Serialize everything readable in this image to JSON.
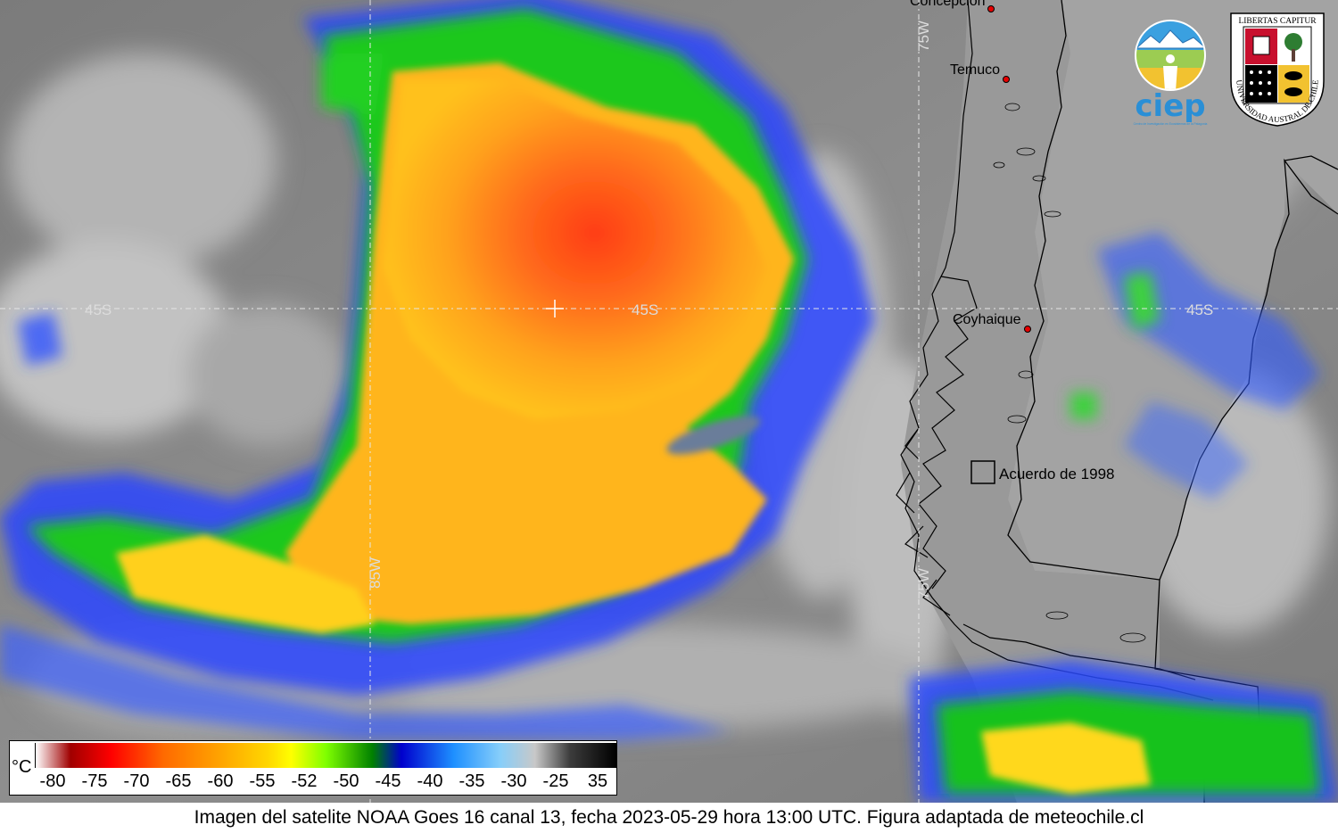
{
  "title": "",
  "caption": "Imagen del satelite NOAA Goes 16 canal 13, fecha 2023-05-29 hora 13:00 UTC. Figura adaptada de meteochile.cl",
  "legend": {
    "unit": "°C",
    "ticks": [
      "-80",
      "-75",
      "-70",
      "-65",
      "-60",
      "-55",
      "-52",
      "-50",
      "-45",
      "-40",
      "-35",
      "-30",
      "-25",
      "35"
    ],
    "colors": [
      "#ffffff",
      "#8b0000",
      "#ff0000",
      "#ff6a00",
      "#ffa500",
      "#ffd700",
      "#ffff00",
      "#7fff00",
      "#008000",
      "#0000cd",
      "#1e90ff",
      "#87cefa",
      "#c0c0c0",
      "#000000"
    ]
  },
  "graticule": {
    "lat_label": "45S",
    "lon_label": "75W",
    "lon_label_west": "85W"
  },
  "places": [
    {
      "name": "Concepción"
    },
    {
      "name": "Temuco"
    },
    {
      "name": "Coyhaique"
    }
  ],
  "annotation": {
    "label": "Acuerdo de 1998"
  },
  "logos": {
    "ciep_text": "ciep",
    "ciep_subtitle": "Centro de Investigación en Ecosistemas de la Patagonia",
    "uach_top": "LIBERTAS CAPITUR",
    "uach_arc": "UNIVERSIDAD AUSTRAL DE CHILE"
  },
  "colors": {
    "background_gray": "#8a8a8a",
    "cloud_core": "#ff4a1a",
    "cloud_mid": "#ffa51f",
    "cloud_edge": "#19c21c",
    "cloud_blue": "#1f3cff",
    "city_dot": "#e60000"
  }
}
